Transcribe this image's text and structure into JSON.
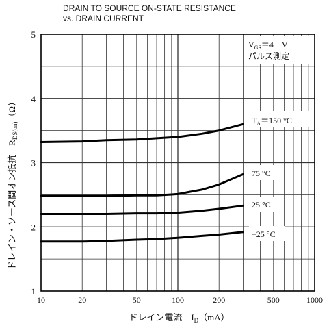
{
  "chart_data": {
    "type": "line",
    "title_line1": "DRAIN TO SOURCE ON-STATE RESISTANCE",
    "title_line2": "vs. DRAIN CURRENT",
    "xlabel": "ドレイン電流　I",
    "xlabel_sub": "D",
    "xlabel_unit": "（mA）",
    "ylabel": "ドレイン・ソース間オン抵抗　R",
    "ylabel_sub": "DS(on)",
    "ylabel_unit": "（Ω）",
    "x_scale": "log",
    "xlim": [
      10,
      1000
    ],
    "ylim": [
      1,
      5
    ],
    "x_ticks": [
      10,
      20,
      50,
      100,
      200,
      500,
      1000
    ],
    "y_ticks": [
      1,
      2,
      3,
      4,
      5
    ],
    "grid": true,
    "condition_line1": "V",
    "condition_line1_sub": "GS",
    "condition_line1_value": "＝4　V",
    "condition_line2": "パルス測定",
    "series": [
      {
        "name": "T",
        "name_sub": "A",
        "name_value": "＝150 °C",
        "x": [
          10,
          20,
          30,
          50,
          70,
          100,
          150,
          200,
          300
        ],
        "y": [
          3.32,
          3.33,
          3.35,
          3.36,
          3.38,
          3.4,
          3.45,
          3.5,
          3.6
        ]
      },
      {
        "name": "75 °C",
        "x": [
          10,
          20,
          30,
          50,
          70,
          100,
          150,
          200,
          300
        ],
        "y": [
          2.48,
          2.48,
          2.48,
          2.49,
          2.49,
          2.51,
          2.58,
          2.66,
          2.82
        ]
      },
      {
        "name": "25 °C",
        "x": [
          10,
          20,
          30,
          50,
          70,
          100,
          150,
          200,
          300
        ],
        "y": [
          2.2,
          2.2,
          2.2,
          2.21,
          2.21,
          2.22,
          2.25,
          2.28,
          2.33
        ]
      },
      {
        "name": "−25 °C",
        "x": [
          10,
          20,
          30,
          50,
          70,
          100,
          150,
          200,
          300
        ],
        "y": [
          1.77,
          1.77,
          1.78,
          1.8,
          1.81,
          1.83,
          1.86,
          1.88,
          1.92
        ]
      }
    ]
  }
}
